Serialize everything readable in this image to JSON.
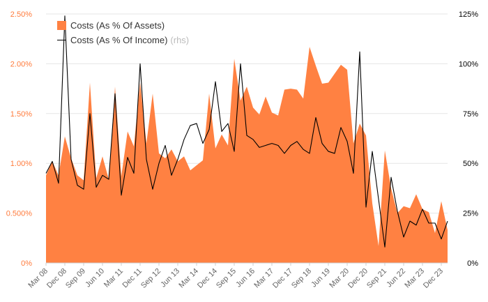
{
  "chart_data": {
    "type": "area",
    "colors": {
      "assets_fill": "#ff8142",
      "income_line": "#000000",
      "left_axis_text": "#ff7a3a",
      "right_axis_text": "#000000"
    },
    "x": [
      "Mar 08",
      "Jun 08",
      "Sep 08",
      "Dec 08",
      "Mar 09",
      "Jun 09",
      "Sep 09",
      "Dec 09",
      "Mar 10",
      "Jun 10",
      "Sep 10",
      "Dec 10",
      "Mar 11",
      "Jun 11",
      "Sep 11",
      "Dec 11",
      "Mar 12",
      "Jun 12",
      "Sep 12",
      "Dec 12",
      "Mar 13",
      "Jun 13",
      "Sep 13",
      "Dec 13",
      "Mar 14",
      "Jun 14",
      "Sep 14",
      "Dec 14",
      "Mar 15",
      "Jun 15",
      "Sep 15",
      "Dec 15",
      "Mar 16",
      "Jun 16",
      "Sep 16",
      "Dec 16",
      "Mar 17",
      "Jun 17",
      "Sep 17",
      "Dec 17",
      "Mar 18",
      "Jun 18",
      "Sep 18",
      "Dec 18",
      "Mar 19",
      "Jun 19",
      "Sep 19",
      "Dec 19",
      "Mar 20",
      "Jun 20",
      "Sep 20",
      "Dec 20",
      "Mar 21",
      "Jun 21",
      "Sep 21",
      "Dec 21",
      "Mar 22",
      "Jun 22",
      "Sep 22",
      "Dec 22",
      "Mar 23",
      "Jun 23",
      "Sep 23",
      "Dec 23",
      "Mar 24"
    ],
    "x_tick_labels": [
      "Mar 08",
      "Dec 08",
      "Sep 09",
      "Jun 10",
      "Mar 11",
      "Dec 11",
      "Sep 12",
      "Jun 13",
      "Mar 14",
      "Dec 14",
      "Sep 15",
      "Jun 16",
      "Mar 17",
      "Dec 17",
      "Sep 18",
      "Jun 19",
      "Mar 20",
      "Dec 20",
      "Sep 21",
      "Jun 22",
      "Mar 23",
      "Dec 23"
    ],
    "series": [
      {
        "name": "Costs (As % Of Assets)",
        "axis": "left",
        "values": [
          0.88,
          1.02,
          0.88,
          1.27,
          1.05,
          0.88,
          0.83,
          1.81,
          0.85,
          1.07,
          0.84,
          1.77,
          0.87,
          1.32,
          1.17,
          1.81,
          1.2,
          1.7,
          1.1,
          1.05,
          1.14,
          1.02,
          1.07,
          0.93,
          0.98,
          1.03,
          1.7,
          1.15,
          1.29,
          1.18,
          2.05,
          1.63,
          1.77,
          1.56,
          1.49,
          1.67,
          1.51,
          1.48,
          1.74,
          1.75,
          1.74,
          1.65,
          2.17,
          1.98,
          1.8,
          1.81,
          1.9,
          1.99,
          1.94,
          1.2,
          1.4,
          1.28,
          0.6,
          0.17,
          1.13,
          0.75,
          0.5,
          0.57,
          0.55,
          0.69,
          0.54,
          0.51,
          0.3,
          0.62,
          0.33
        ]
      },
      {
        "name": "Costs (As % Of Income)",
        "axis": "right",
        "values": [
          45,
          51,
          40,
          124,
          52,
          39,
          37,
          75,
          38,
          44,
          42,
          85,
          34,
          53,
          45,
          100,
          52,
          37,
          50,
          59,
          44,
          52,
          62,
          69,
          70,
          60,
          67,
          91,
          66,
          70,
          56,
          100,
          64,
          62,
          58,
          59,
          60,
          59,
          55,
          59,
          61,
          57,
          55,
          73,
          60,
          56,
          55,
          68,
          61,
          45,
          106,
          28,
          56,
          32,
          8,
          43,
          26,
          13,
          21,
          19,
          27,
          20,
          20,
          12,
          21
        ]
      }
    ],
    "y_left": {
      "ylim": [
        0,
        2.5
      ],
      "ticks": [
        "0%",
        "0.500%",
        "1.00%",
        "1.50%",
        "2.00%",
        "2.50%"
      ]
    },
    "y_right": {
      "ylim": [
        0,
        125
      ],
      "ticks": [
        "0%",
        "25%",
        "50%",
        "75%",
        "100%",
        "125%"
      ]
    },
    "grid": true,
    "legend_position": "top-left",
    "legend": {
      "assets_label": "Costs (As % Of Assets)",
      "income_label": "Costs (As % Of Income)",
      "rhs_tag": "(rhs)"
    }
  }
}
